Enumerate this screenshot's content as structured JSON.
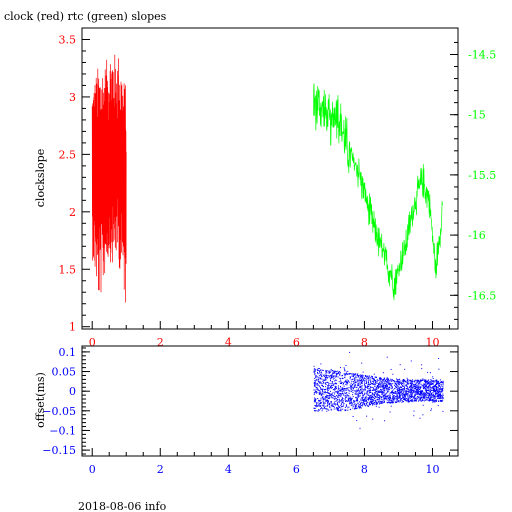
{
  "page": {
    "title": "clock (red) rtc (green) slopes",
    "footer": "2018-08-06 info"
  },
  "colors": {
    "clock": "#ff0000",
    "rtc": "#00ff00",
    "offset": "#0000ff",
    "axis": "#000000"
  },
  "chart_data": [
    {
      "type": "line",
      "title": "clock (red) rtc (green) slopes",
      "xlabel": "",
      "ylabel": "clockslope",
      "xlim": [
        -0.3,
        10.75
      ],
      "ylim": [
        0.98,
        3.6
      ],
      "y2lim": [
        -16.78,
        -14.28
      ],
      "x_ticks": [
        0,
        2,
        4,
        6,
        8,
        10
      ],
      "x_tick_labels": [
        "0",
        "2",
        "4",
        "6",
        "8",
        "10"
      ],
      "y_ticks": [
        1,
        1.5,
        2,
        2.5,
        3,
        3.5
      ],
      "y_tick_labels": [
        "1",
        "1.5",
        "2",
        "2.5",
        "3",
        "3.5"
      ],
      "y2_ticks": [
        -16.5,
        -16,
        -15.5,
        -15,
        -14.5
      ],
      "y2_tick_labels": [
        "-16.5",
        "-16",
        "-15.5",
        "-15",
        "-14.5"
      ],
      "grid": false,
      "series": [
        {
          "axis": "left",
          "x_range": [
            0,
            1
          ],
          "envelope": [
            {
              "x": 0.0,
              "lo": 1.6,
              "hi": 3.1
            },
            {
              "x": 0.1,
              "lo": 1.4,
              "hi": 3.2
            },
            {
              "x": 0.2,
              "lo": 1.2,
              "hi": 3.3
            },
            {
              "x": 0.3,
              "lo": 1.3,
              "hi": 3.3
            },
            {
              "x": 0.4,
              "lo": 1.5,
              "hi": 3.3
            },
            {
              "x": 0.5,
              "lo": 1.6,
              "hi": 3.4
            },
            {
              "x": 0.6,
              "lo": 1.5,
              "hi": 3.45
            },
            {
              "x": 0.7,
              "lo": 1.6,
              "hi": 3.35
            },
            {
              "x": 0.8,
              "lo": 1.5,
              "hi": 3.4
            },
            {
              "x": 0.9,
              "lo": 1.4,
              "hi": 3.2
            },
            {
              "x": 1.0,
              "lo": 1.1,
              "hi": 3.1
            }
          ]
        },
        {
          "axis": "right",
          "x_range": [
            6.5,
            10.3
          ],
          "center": [
            {
              "x": 6.5,
              "y": -14.9
            },
            {
              "x": 6.8,
              "y": -14.95
            },
            {
              "x": 7.0,
              "y": -15.1
            },
            {
              "x": 7.2,
              "y": -14.95
            },
            {
              "x": 7.5,
              "y": -15.3
            },
            {
              "x": 7.8,
              "y": -15.45
            },
            {
              "x": 8.0,
              "y": -15.65
            },
            {
              "x": 8.3,
              "y": -15.95
            },
            {
              "x": 8.6,
              "y": -16.2
            },
            {
              "x": 8.9,
              "y": -16.4
            },
            {
              "x": 9.2,
              "y": -16.1
            },
            {
              "x": 9.5,
              "y": -15.7
            },
            {
              "x": 9.7,
              "y": -15.55
            },
            {
              "x": 9.9,
              "y": -15.7
            },
            {
              "x": 10.1,
              "y": -16.3
            },
            {
              "x": 10.3,
              "y": -15.75
            }
          ]
        }
      ]
    },
    {
      "type": "scatter",
      "xlabel": "",
      "ylabel": "offset(ms)",
      "xlim": [
        -0.3,
        10.75
      ],
      "ylim": [
        -0.165,
        0.115
      ],
      "x_ticks": [
        0,
        2,
        4,
        6,
        8,
        10
      ],
      "x_tick_labels": [
        "0",
        "2",
        "4",
        "6",
        "8",
        "10"
      ],
      "y_ticks": [
        0.1,
        0.05,
        0,
        -0.05,
        -0.1,
        -0.15
      ],
      "y_tick_labels": [
        "0.1",
        "0.05",
        "0",
        "−0.05",
        "−0.1",
        "−0.15"
      ],
      "grid": false,
      "series": [
        {
          "x_range": [
            6.5,
            10.3
          ],
          "band": [
            {
              "x": 6.5,
              "lo": -0.05,
              "hi": 0.06
            },
            {
              "x": 7.5,
              "lo": -0.05,
              "hi": 0.05
            },
            {
              "x": 8.5,
              "lo": -0.03,
              "hi": 0.035
            },
            {
              "x": 9.5,
              "lo": -0.025,
              "hi": 0.03
            },
            {
              "x": 10.3,
              "lo": -0.025,
              "hi": 0.03
            }
          ]
        }
      ]
    }
  ]
}
